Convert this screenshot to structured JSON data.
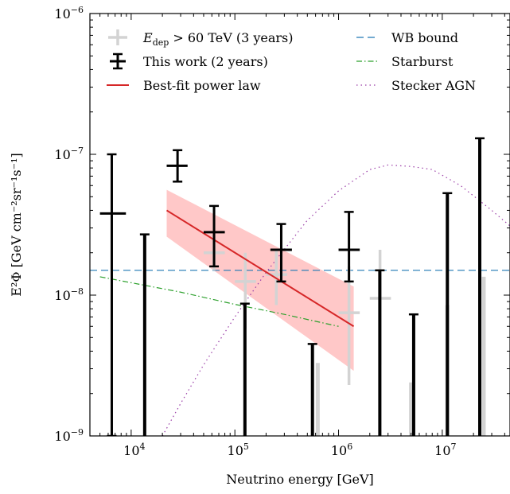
{
  "chart_data": {
    "type": "scatter",
    "title": "",
    "xlabel": "Neutrino energy [GeV]",
    "ylabel": "E²Φ [GeV cm⁻²sr⁻¹s⁻¹]",
    "xscale": "log",
    "yscale": "log",
    "xlim": [
      4000,
      45000000
    ],
    "ylim": [
      1e-09,
      1e-06
    ],
    "x_ticks": [
      {
        "value": 10000,
        "mantissa": "10",
        "exp": "4"
      },
      {
        "value": 100000,
        "mantissa": "10",
        "exp": "5"
      },
      {
        "value": 1000000,
        "mantissa": "10",
        "exp": "6"
      },
      {
        "value": 10000000,
        "mantissa": "10",
        "exp": "7"
      }
    ],
    "y_ticks": [
      {
        "value": 1e-09,
        "mantissa": "10",
        "exp": "−9"
      },
      {
        "value": 1e-08,
        "mantissa": "10",
        "exp": "−8"
      },
      {
        "value": 1e-07,
        "mantissa": "10",
        "exp": "−7"
      },
      {
        "value": 1e-06,
        "mantissa": "10",
        "exp": "−6"
      }
    ],
    "legend_placement": "top",
    "colors": {
      "this_work": "#000000",
      "three_years": "#d3d3d3",
      "best_fit": "#d62728",
      "best_fit_band": "#ffc8c8",
      "wb_bound": "#1f77b4",
      "starburst": "#2ca02c",
      "stecker": "#9b3fa8"
    },
    "series": [
      {
        "name": "E_dep > 60 TeV (3 years)",
        "legend_label": "E",
        "legend_sub": "dep",
        "legend_rest": " > 60 TeV (3 years)",
        "kind": "errorbar",
        "points": [
          {
            "x": 63000,
            "y": 2e-08,
            "xlo": 50000,
            "xhi": 80000,
            "ylo": 1.5e-08,
            "yhi": 2.6e-08
          },
          {
            "x": 126000,
            "y": 1.25e-08,
            "xlo": 100000,
            "xhi": 160000,
            "ylo": 5.8e-09,
            "yhi": 2e-08
          },
          {
            "x": 251000,
            "y": 1.4e-08,
            "xlo": 200000,
            "xhi": 320000,
            "ylo": 8.5e-09,
            "yhi": 2.1e-08
          },
          {
            "x": 1260000,
            "y": 7.5e-09,
            "xlo": 1000000,
            "xhi": 1600000,
            "ylo": 2.3e-09,
            "yhi": 1.6e-08
          },
          {
            "x": 2510000,
            "y": 9.5e-09,
            "xlo": 2000000,
            "xhi": 3200000,
            "ylo": 3.2e-09,
            "yhi": 2.1e-08
          }
        ],
        "upper_limits": [
          {
            "x": 630000,
            "y": 3.3e-09
          },
          {
            "x": 5000000,
            "y": 2.4e-09
          },
          {
            "x": 11200000,
            "y": 8.5e-09
          },
          {
            "x": 25100000,
            "y": 1.35e-08
          }
        ]
      },
      {
        "name": "This work (2 years)",
        "kind": "errorbar",
        "points": [
          {
            "x": 6500,
            "y": 3.8e-08,
            "xlo": 5000,
            "xhi": 8900,
            "ylo": 1e-09,
            "yhi": 1e-07
          },
          {
            "x": 28000,
            "y": 8.3e-08,
            "xlo": 22000,
            "xhi": 35000,
            "ylo": 6.4e-08,
            "yhi": 1.07e-07
          },
          {
            "x": 63000,
            "y": 2.8e-08,
            "xlo": 50000,
            "xhi": 80000,
            "ylo": 1.6e-08,
            "yhi": 4.3e-08
          },
          {
            "x": 280000,
            "y": 2.1e-08,
            "xlo": 220000,
            "xhi": 355000,
            "ylo": 1.25e-08,
            "yhi": 3.2e-08
          },
          {
            "x": 1260000,
            "y": 2.1e-08,
            "xlo": 1000000,
            "xhi": 1600000,
            "ylo": 1.25e-08,
            "yhi": 3.9e-08
          }
        ],
        "upper_limits": [
          {
            "x": 13500,
            "y": 2.7e-08
          },
          {
            "x": 125000,
            "y": 8.7e-09
          },
          {
            "x": 560000,
            "y": 4.5e-09
          },
          {
            "x": 2500000,
            "y": 1.5e-08
          },
          {
            "x": 5300000,
            "y": 7.3e-09
          },
          {
            "x": 11200000,
            "y": 5.3e-08
          },
          {
            "x": 23000000,
            "y": 1.3e-07
          }
        ]
      },
      {
        "name": "Best-fit power law",
        "kind": "line",
        "x": [
          22000,
          1400000
        ],
        "y": [
          4e-08,
          6e-09
        ],
        "band_upper": [
          5.6e-08,
          1.15e-08
        ],
        "band_lower": [
          2.6e-08,
          2.9e-09
        ]
      },
      {
        "name": "WB bound",
        "kind": "hline",
        "y": 1.5e-08,
        "style": "dashed"
      },
      {
        "name": "Starburst",
        "kind": "line",
        "style": "dashdot",
        "x": [
          5000,
          30000,
          100000,
          300000,
          1000000
        ],
        "y": [
          1.35e-08,
          1.05e-08,
          8.6e-09,
          7.3e-09,
          6e-09
        ]
      },
      {
        "name": "Stecker AGN",
        "kind": "line",
        "style": "dotted",
        "x": [
          20000,
          30000,
          50000,
          100000,
          200000,
          500000,
          1000000,
          2000000,
          3000000,
          5000000,
          8000000,
          15000000,
          30000000,
          45000000
        ],
        "y": [
          1e-09,
          1.7e-09,
          3.2e-09,
          7e-09,
          1.45e-08,
          3.4e-08,
          5.5e-08,
          7.8e-08,
          8.4e-08,
          8.2e-08,
          7.8e-08,
          6e-08,
          4e-08,
          3.1e-08
        ]
      }
    ]
  }
}
